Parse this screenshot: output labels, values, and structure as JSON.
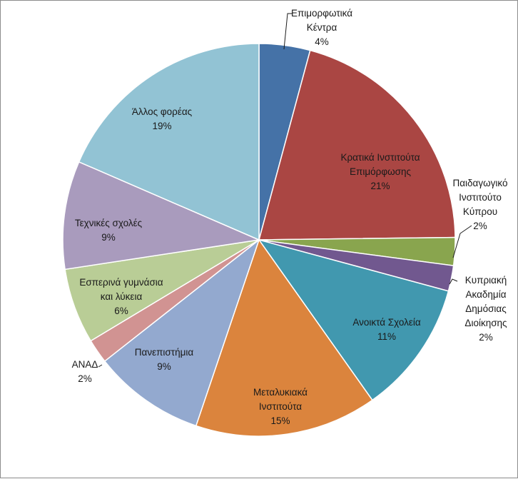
{
  "chart_data": {
    "type": "pie",
    "title": "",
    "start": "top",
    "direction": "clockwise",
    "slices": [
      {
        "lines": [
          "Επιμορφωτικά",
          "Κέντρα"
        ],
        "percent_label": "4%",
        "value": 4.2,
        "color": "#4572a7"
      },
      {
        "lines": [
          "Κρατικά Ινστιτούτα",
          "Επιμόρφωσης"
        ],
        "percent_label": "21%",
        "value": 20.6,
        "color": "#aa4643"
      },
      {
        "lines": [
          "Παιδαγωγικό",
          "Ινστιτούτο",
          "Κύπρου"
        ],
        "percent_label": "2%",
        "value": 2.3,
        "color": "#89a54e"
      },
      {
        "lines": [
          "Κυπριακή",
          "Ακαδημία",
          "Δημόσιας",
          "Διοίκησης"
        ],
        "percent_label": "2%",
        "value": 2.1,
        "color": "#71588f"
      },
      {
        "lines": [
          "Ανοικτά Σχολεία"
        ],
        "percent_label": "11%",
        "value": 11.0,
        "color": "#4198af"
      },
      {
        "lines": [
          "Μεταλυκιακά",
          "Ινστιτούτα"
        ],
        "percent_label": "15%",
        "value": 15.0,
        "color": "#db843d"
      },
      {
        "lines": [
          "Πανεπιστήμια"
        ],
        "percent_label": "9%",
        "value": 9.2,
        "color": "#93a9cf"
      },
      {
        "lines": [
          "ΑΝΑΔ"
        ],
        "percent_label": "2%",
        "value": 2.0,
        "color": "#d19392"
      },
      {
        "lines": [
          "Εσπερινά γυμνάσια",
          "και λύκεια"
        ],
        "percent_label": "6%",
        "value": 6.2,
        "color": "#b9cd96"
      },
      {
        "lines": [
          "Τεχνικές σχολές"
        ],
        "percent_label": "9%",
        "value": 8.9,
        "color": "#a99bbd"
      },
      {
        "lines": [
          "Άλλος φορέας"
        ],
        "percent_label": "19%",
        "value": 18.5,
        "color": "#92c3d4"
      }
    ]
  }
}
